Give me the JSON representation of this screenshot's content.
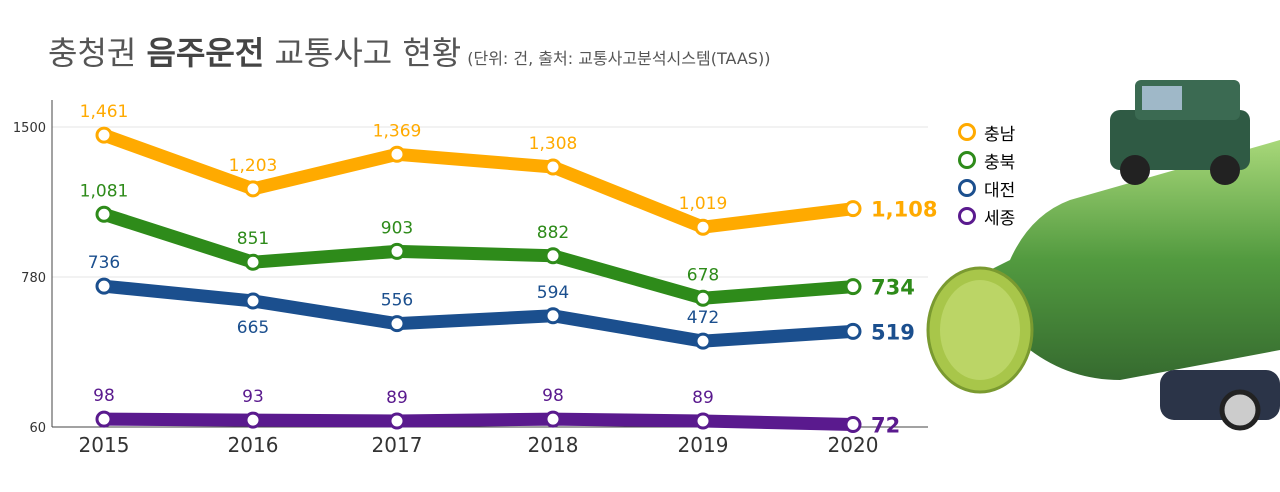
{
  "title": {
    "main_prefix": "충청권 ",
    "main_bold": "음주운전",
    "main_suffix": " 교통사고 현황",
    "subtitle": "(단위: 건, 출처: 교통사고분석시스템(TAAS))"
  },
  "chart_data": {
    "type": "line",
    "title": "충청권 음주운전 교통사고 현황",
    "x": [
      "2015",
      "2016",
      "2017",
      "2018",
      "2019",
      "2020"
    ],
    "yticks": [
      "1500",
      "780",
      "60"
    ],
    "ylim": [
      60,
      1500
    ],
    "grid": true,
    "legend_placement": "right",
    "series": [
      {
        "name": "충남",
        "color": "#FFAA00",
        "values": [
          1461,
          1203,
          1369,
          1308,
          1019,
          1108
        ],
        "labels": [
          "1,461",
          "1,203",
          "1,369",
          "1,308",
          "1,019",
          "1,108"
        ]
      },
      {
        "name": "충북",
        "color": "#2E8B1A",
        "values": [
          1081,
          851,
          903,
          882,
          678,
          734
        ],
        "labels": [
          "1,081",
          "851",
          "903",
          "882",
          "678",
          "734"
        ]
      },
      {
        "name": "대전",
        "color": "#1B4F8E",
        "values": [
          736,
          665,
          556,
          594,
          472,
          519
        ],
        "labels": [
          "736",
          "665",
          "556",
          "594",
          "472",
          "519"
        ]
      },
      {
        "name": "세종",
        "color": "#5A1A8E",
        "values": [
          98,
          93,
          89,
          98,
          89,
          72
        ],
        "labels": [
          "98",
          "93",
          "89",
          "98",
          "89",
          "72"
        ]
      }
    ]
  }
}
